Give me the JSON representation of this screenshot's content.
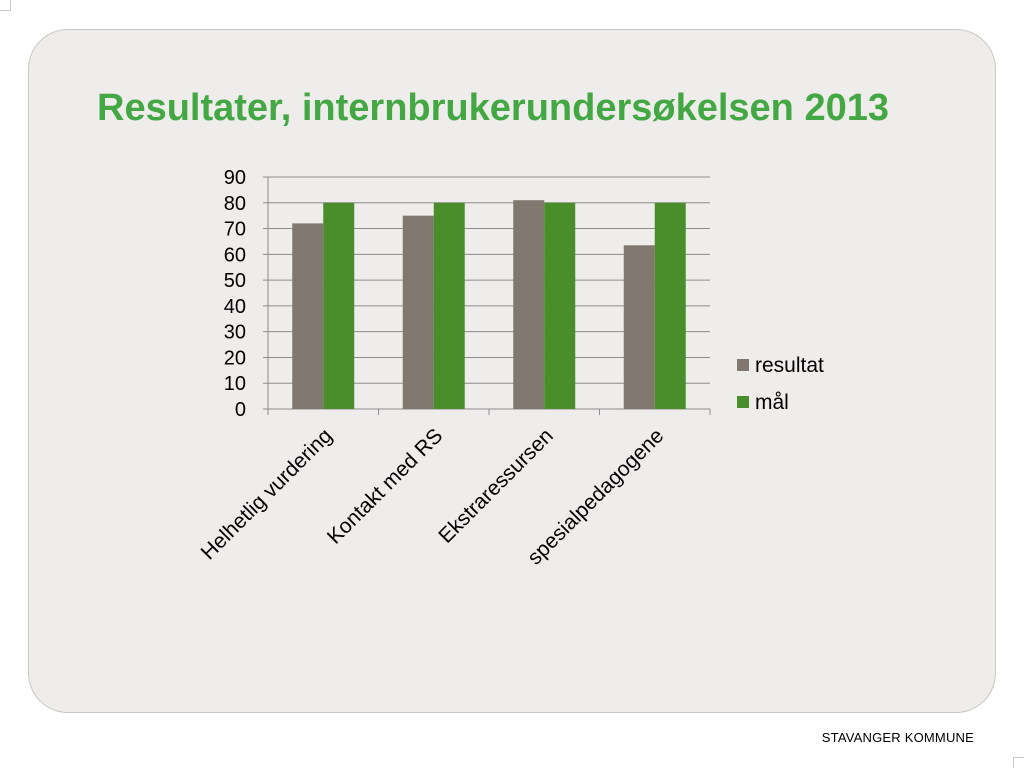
{
  "slide": {
    "title": "Resultater, internbrukerundersøkelsen 2013",
    "footer": "STAVANGER KOMMUNE"
  },
  "chart_data": {
    "type": "bar",
    "title": "",
    "xlabel": "",
    "ylabel": "",
    "categories": [
      "Helhetlig vurdering",
      "Kontakt med RS",
      "Ekstraressursen",
      "spesialpedagogene"
    ],
    "series": [
      {
        "name": "resultat",
        "values": [
          72,
          75,
          81,
          63.5
        ],
        "color": "#80776f"
      },
      {
        "name": "mål",
        "values": [
          80,
          80,
          80,
          80
        ],
        "color": "#4a8e2c"
      }
    ],
    "ylim": [
      0,
      90
    ],
    "yticks": [
      0,
      10,
      20,
      30,
      40,
      50,
      60,
      70,
      80,
      90
    ],
    "grid": true,
    "legend_position": "right"
  }
}
